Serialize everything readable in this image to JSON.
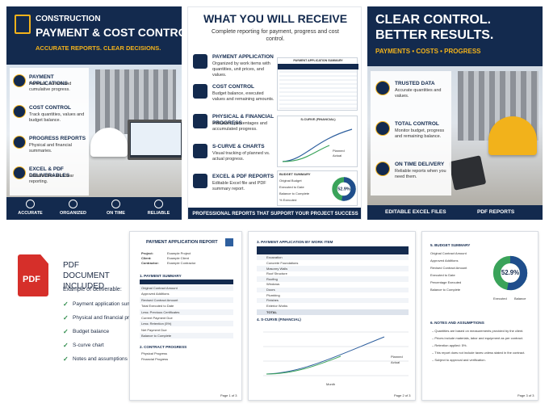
{
  "panel1": {
    "kicker": "CONSTRUCTION",
    "title": "PAYMENT & COST CONTROL",
    "tagline": "ACCURATE REPORTS. CLEAR DECISIONS.",
    "items": [
      {
        "title": "PAYMENT APPLICATIONS",
        "text": "Previous, current and cumulative progress."
      },
      {
        "title": "COST CONTROL",
        "text": "Track quantities, values and budget balance."
      },
      {
        "title": "PROGRESS REPORTS",
        "text": "Physical and financial summaries."
      },
      {
        "title": "EXCEL & PDF DELIVERABLES",
        "text": "Editable files and clear reporting."
      }
    ],
    "badges": [
      "ACCURATE",
      "ORGANIZED",
      "ON TIME",
      "RELIABLE"
    ]
  },
  "panel2": {
    "title": "WHAT YOU WILL RECEIVE",
    "subtitle": "Complete reporting for payment, progress and cost control.",
    "items": [
      {
        "title": "PAYMENT APPLICATION",
        "text": "Organized by work items with quantities, unit prices, and values."
      },
      {
        "title": "COST CONTROL",
        "text": "Budget balance, executed values and remaining amounts."
      },
      {
        "title": "PHYSICAL & FINANCIAL PROGRESS",
        "text": "Indicators, percentages and accumulated progress."
      },
      {
        "title": "S-CURVE & CHARTS",
        "text": "Visual tracking of planned vs. actual progress."
      },
      {
        "title": "EXCEL & PDF REPORTS",
        "text": "Editable Excel file and PDF summary report."
      }
    ],
    "table_title": "PAYMENT APPLICATION SUMMARY",
    "chart_title": "S-CURVE (FINANCIAL)",
    "legend": [
      "Planned",
      "Actual"
    ],
    "budget_title": "BUDGET SUMMARY",
    "budget_rows": [
      "Original Budget",
      "Executed to Date",
      "Balance to Complete",
      "% Executed"
    ],
    "donut": {
      "value": 52.9,
      "label": "52.9%"
    },
    "footer": "PROFESSIONAL REPORTS THAT SUPPORT YOUR PROJECT SUCCESS"
  },
  "panel3": {
    "title_line1": "CLEAR CONTROL.",
    "title_line2": "BETTER RESULTS.",
    "tagline": "PAYMENTS • COSTS • PROGRESS",
    "items": [
      {
        "title": "TRUSTED DATA",
        "text": "Accurate quantities and values."
      },
      {
        "title": "TOTAL CONTROL",
        "text": "Monitor budget, progress and remaining balance."
      },
      {
        "title": "ON TIME DELIVERY",
        "text": "Reliable reports when you need them."
      }
    ],
    "footer": [
      "EDITABLE EXCEL FILES",
      "PDF REPORTS"
    ]
  },
  "pdf": {
    "icon": "PDF",
    "title": "PDF DOCUMENT INCLUDED",
    "intro": "Example of deliverable:",
    "list": [
      "Payment application summary",
      "Physical and financial progress",
      "Budget balance",
      "S-curve chart",
      "Notes and assumptions"
    ]
  },
  "doc1": {
    "title": "PAYMENT APPLICATION REPORT",
    "meta": [
      [
        "Project:",
        "Example Project"
      ],
      [
        "Client:",
        "Example Client"
      ],
      [
        "Contractor:",
        "Example Contractor"
      ]
    ],
    "section1": "1. PAYMENT SUMMARY",
    "rows": [
      "Original Contract Amount",
      "Approved Additions",
      "Revised Contract Amount",
      "Total Executed to Date",
      "Less: Previous Certificates",
      "Current Payment Due",
      "Less: Retention (5%)",
      "Net Payment Due",
      "Balance to Complete"
    ],
    "section2": "2. CONTRACT PROGRESS",
    "progress": [
      "Physical Progress",
      "Financial Progress"
    ],
    "footer": "Page 1 of 3"
  },
  "doc2": {
    "section3": "3. PAYMENT APPLICATION BY WORK ITEM",
    "items": [
      "Excavation",
      "Concrete Foundations",
      "Masonry Walls",
      "Roof Structure",
      "Roofing",
      "Windows",
      "Doors",
      "Plumbing",
      "Finishes",
      "Exterior Works"
    ],
    "total": "TOTAL",
    "section4": "4. S-CURVE (FINANCIAL)",
    "legend": [
      "Planned",
      "Actual"
    ],
    "axis": "Month",
    "footer": "Page 2 of 3"
  },
  "doc3": {
    "section5": "5. BUDGET SUMMARY",
    "rows": [
      "Original Contract Amount",
      "Approved Additions",
      "Revised Contract Amount",
      "Executed to Date",
      "Percentage Executed",
      "Balance to Complete"
    ],
    "donut": {
      "value": 52.9,
      "label": "52.9%"
    },
    "legend": [
      "Executed",
      "Balance"
    ],
    "section6": "6. NOTES AND ASSUMPTIONS",
    "notes": [
      "Quantities are based on measurements provided by the client.",
      "Prices include materials, labor and equipment as per contract.",
      "Retention applied: 5%.",
      "This report does not include taxes unless stated in the contract.",
      "Subject to approval and verification."
    ],
    "footer": "Page 3 of 3"
  }
}
